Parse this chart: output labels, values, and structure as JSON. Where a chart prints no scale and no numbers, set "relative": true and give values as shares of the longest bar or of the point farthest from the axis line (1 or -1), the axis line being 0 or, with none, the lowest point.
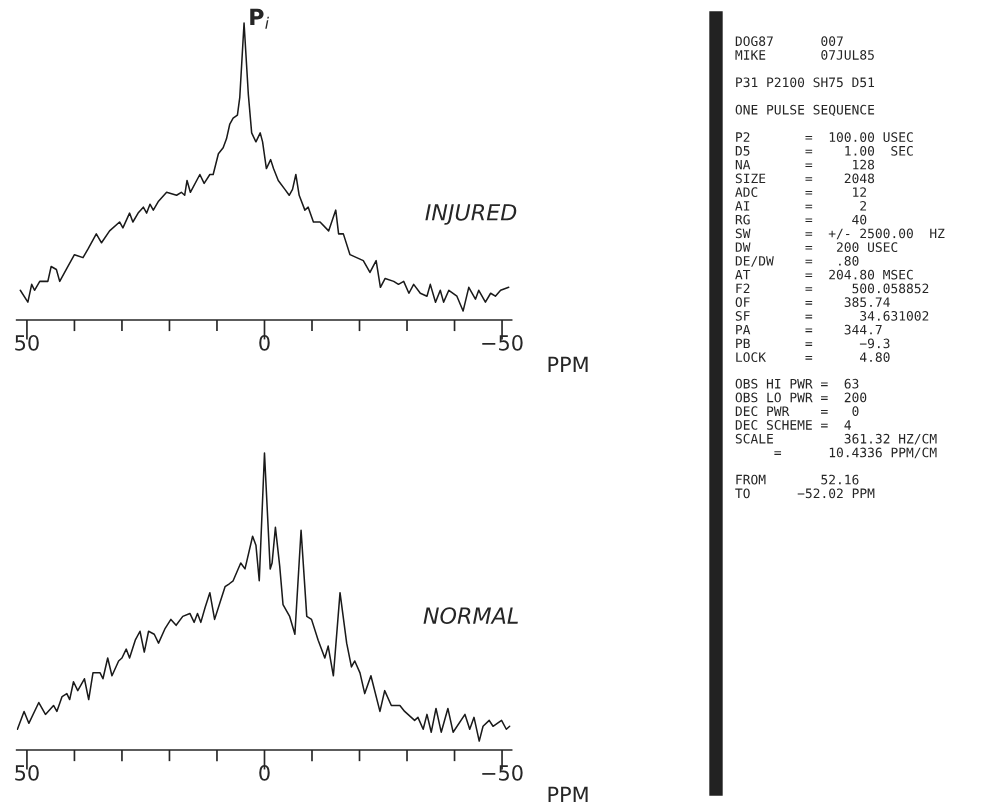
{
  "chart_data": [
    {
      "type": "line",
      "title": "INJURED",
      "xlabel": "PPM",
      "relative": true,
      "tick_labels": "x",
      "xlim": [
        52.16,
        -52.02
      ],
      "xticks": [
        50,
        {
          "value": 40,
          "label": null
        },
        {
          "value": 30,
          "label": null
        },
        {
          "value": 20,
          "label": null
        },
        {
          "value": 10,
          "label": null
        },
        0,
        {
          "value": -10,
          "label": null
        },
        {
          "value": -20,
          "label": null
        },
        {
          "value": -30,
          "label": null
        },
        {
          "value": -40,
          "label": null
        },
        {
          "value": -50,
          "label": "−50"
        }
      ],
      "annotations": [
        {
          "text": "P$_{i}$",
          "x": 4.3,
          "y": 1.0
        }
      ],
      "series": [
        {
          "color": "#1a1a1a",
          "x": [
            51.4,
            49.8,
            49.0,
            48.4,
            47.3,
            45.6,
            44.9,
            43.8,
            43.1,
            41.4,
            40.0,
            38.2,
            37.1,
            35.4,
            34.3,
            32.6,
            30.5,
            29.8,
            28.4,
            27.7,
            26.6,
            25.5,
            24.8,
            24.1,
            23.4,
            22.3,
            20.6,
            18.5,
            17.5,
            16.8,
            16.3,
            15.6,
            13.6,
            12.7,
            11.5,
            10.8,
            9.7,
            8.7,
            8.0,
            7.3,
            6.6,
            5.7,
            5.2,
            4.3,
            3.4,
            2.7,
            1.8,
            0.9,
            0.4,
            -0.4,
            -1.3,
            -1.9,
            -2.9,
            -4.3,
            -5.2,
            -5.9,
            -6.6,
            -7.3,
            -8.5,
            -9.2,
            -10.3,
            -11.7,
            -13.5,
            -15.0,
            -15.6,
            -16.6,
            -18.0,
            -19.4,
            -20.8,
            -22.2,
            -23.5,
            -24.4,
            -25.4,
            -27.2,
            -28.2,
            -29.3,
            -30.4,
            -31.4,
            -32.8,
            -34.2,
            -34.9,
            -36.0,
            -37.0,
            -37.7,
            -38.8,
            -40.5,
            -41.8,
            -43.0,
            -44.4,
            -45.1,
            -46.5,
            -47.6,
            -48.6,
            -49.7,
            -51.4
          ],
          "values": [
            0.1,
            0.06,
            0.12,
            0.1,
            0.13,
            0.13,
            0.18,
            0.17,
            0.13,
            0.18,
            0.22,
            0.21,
            0.24,
            0.29,
            0.26,
            0.3,
            0.33,
            0.31,
            0.36,
            0.33,
            0.36,
            0.38,
            0.36,
            0.39,
            0.37,
            0.4,
            0.43,
            0.42,
            0.43,
            0.42,
            0.47,
            0.43,
            0.49,
            0.46,
            0.49,
            0.49,
            0.56,
            0.58,
            0.61,
            0.66,
            0.68,
            0.69,
            0.75,
            1.0,
            0.76,
            0.63,
            0.6,
            0.63,
            0.6,
            0.51,
            0.54,
            0.51,
            0.47,
            0.44,
            0.42,
            0.44,
            0.49,
            0.42,
            0.37,
            0.38,
            0.33,
            0.33,
            0.3,
            0.37,
            0.29,
            0.29,
            0.22,
            0.21,
            0.2,
            0.16,
            0.2,
            0.11,
            0.14,
            0.13,
            0.12,
            0.13,
            0.09,
            0.12,
            0.09,
            0.08,
            0.12,
            0.06,
            0.1,
            0.06,
            0.1,
            0.08,
            0.03,
            0.11,
            0.07,
            0.1,
            0.06,
            0.09,
            0.08,
            0.1,
            0.11
          ]
        }
      ]
    },
    {
      "type": "line",
      "title": "NORMAL",
      "xlabel": "PPM",
      "relative": true,
      "tick_labels": "x",
      "xlim": [
        52.16,
        -52.02
      ],
      "xticks": [
        50,
        {
          "value": 40,
          "label": null
        },
        {
          "value": 30,
          "label": null
        },
        {
          "value": 20,
          "label": null
        },
        {
          "value": 10,
          "label": null
        },
        0,
        {
          "value": -10,
          "label": null
        },
        {
          "value": -20,
          "label": null
        },
        {
          "value": -30,
          "label": null
        },
        {
          "value": -40,
          "label": null
        },
        {
          "value": -50,
          "label": "−50"
        }
      ],
      "series": [
        {
          "color": "#1a1a1a",
          "x": [
            52.0,
            50.6,
            49.6,
            47.5,
            46.1,
            44.4,
            43.7,
            42.6,
            41.6,
            41.0,
            40.2,
            39.3,
            37.9,
            37.0,
            36.1,
            34.6,
            34.0,
            33.0,
            32.1,
            30.7,
            30.0,
            29.1,
            28.4,
            27.2,
            26.2,
            25.3,
            24.4,
            23.2,
            22.3,
            20.9,
            19.7,
            18.6,
            17.2,
            15.7,
            14.8,
            14.1,
            13.4,
            12.5,
            11.5,
            10.5,
            9.5,
            8.3,
            7.4,
            6.6,
            5.0,
            4.1,
            2.5,
            1.8,
            1.1,
            0.0,
            -1.2,
            -1.6,
            -2.3,
            -3.2,
            -3.9,
            -5.3,
            -6.4,
            -7.7,
            -8.9,
            -9.9,
            -11.3,
            -12.7,
            -13.4,
            -14.5,
            -15.9,
            -17.3,
            -18.3,
            -19.0,
            -20.1,
            -21.1,
            -22.4,
            -24.3,
            -25.3,
            -26.7,
            -28.5,
            -29.5,
            -31.6,
            -32.3,
            -33.4,
            -34.2,
            -35.1,
            -36.1,
            -37.2,
            -38.6,
            -39.7,
            -42.2,
            -43.2,
            -44.1,
            -45.2,
            -46.0,
            -47.3,
            -48.1,
            -49.9,
            -50.9,
            -51.6
          ],
          "values": [
            0.07,
            0.13,
            0.09,
            0.16,
            0.12,
            0.15,
            0.13,
            0.18,
            0.19,
            0.17,
            0.23,
            0.2,
            0.24,
            0.17,
            0.26,
            0.26,
            0.24,
            0.31,
            0.25,
            0.3,
            0.31,
            0.34,
            0.31,
            0.37,
            0.4,
            0.33,
            0.4,
            0.39,
            0.36,
            0.41,
            0.44,
            0.42,
            0.45,
            0.46,
            0.43,
            0.46,
            0.43,
            0.48,
            0.53,
            0.44,
            0.49,
            0.55,
            0.56,
            0.57,
            0.63,
            0.61,
            0.72,
            0.69,
            0.57,
            1.0,
            0.61,
            0.63,
            0.75,
            0.62,
            0.49,
            0.45,
            0.39,
            0.74,
            0.45,
            0.44,
            0.37,
            0.31,
            0.35,
            0.25,
            0.53,
            0.36,
            0.28,
            0.3,
            0.26,
            0.19,
            0.25,
            0.13,
            0.2,
            0.15,
            0.15,
            0.13,
            0.1,
            0.11,
            0.07,
            0.12,
            0.06,
            0.14,
            0.06,
            0.14,
            0.06,
            0.12,
            0.07,
            0.11,
            0.03,
            0.08,
            0.1,
            0.08,
            0.1,
            0.07,
            0.08
          ]
        }
      ]
    },
    {
      "type": "other",
      "annotations": [
        "DOG87      007\nMIKE       07JUL85",
        "P31 P2100 SH75 D51",
        "ONE PULSE SEQUENCE",
        "P2       =  100.00 USEC\nD5       =    1.00  SEC\nNA       =     128\nSIZE     =    2048\nADC      =     12\nAI       =      2\nRG       =     40\nSW       =  +/- 2500.00  HZ\nDW       =   200 USEC\nDE/DW    =   .80\nAT       =  204.80 MSEC\nF2       =     500.058852\nOF       =    385.74\nSF       =      34.631002\nPA       =    344.7\nPB       =      −9.3\nLOCK     =      4.80",
        "OBS HI PWR =  63\nOBS LO PWR =  200\nDEC PWR    =   0\nDEC SCHEME =  4\nSCALE         361.32 HZ/CM\n     =      10.4336 PPM/CM",
        "FROM       52.16\nTO      −52.02 PPM"
      ]
    }
  ]
}
